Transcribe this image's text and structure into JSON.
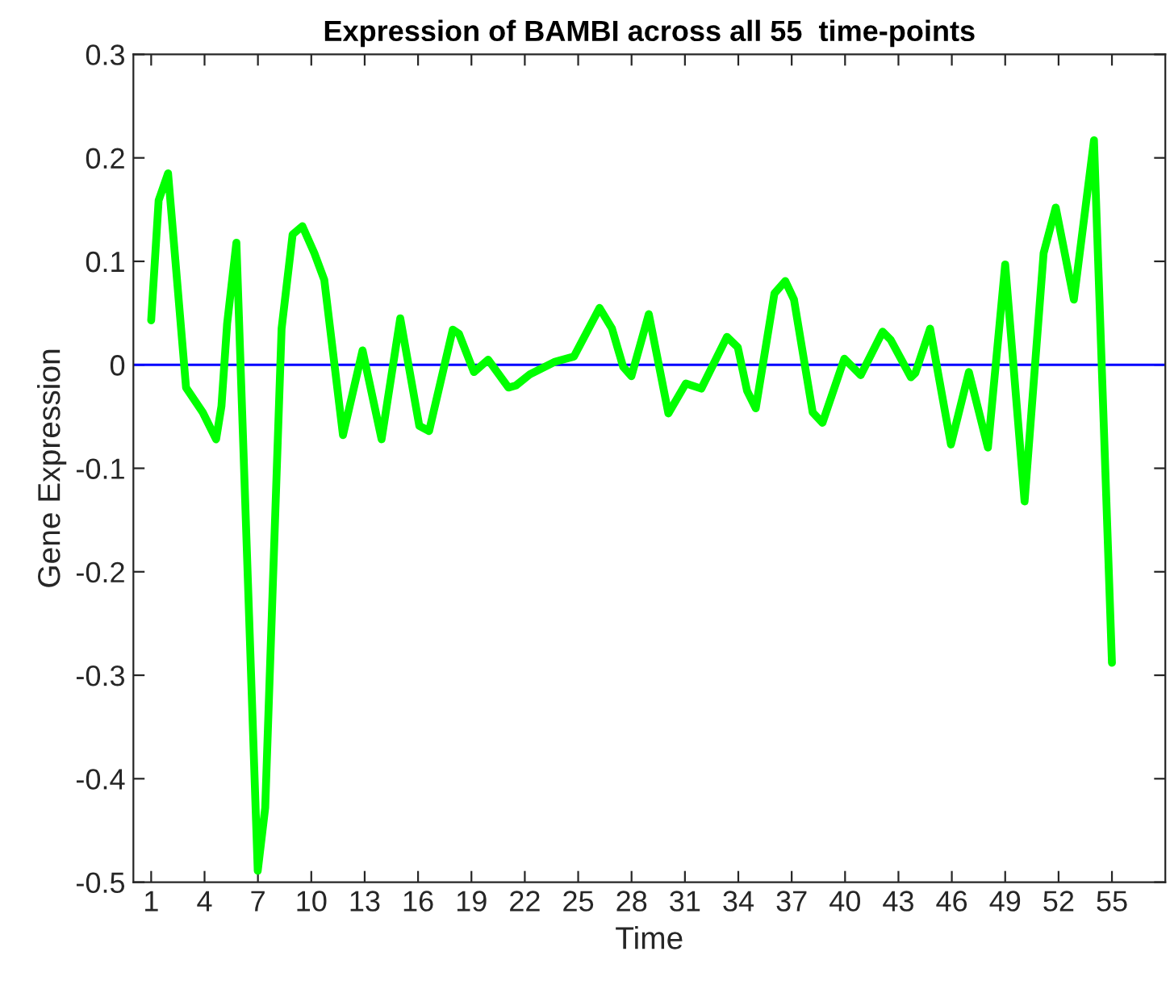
{
  "chart_data": {
    "type": "line",
    "title": "Expression of BAMBI across all 55  time-points",
    "xlabel": "Time",
    "ylabel": "Gene Expression",
    "xlim": [
      0,
      58
    ],
    "xticks": [
      1,
      4,
      7,
      10,
      13,
      16,
      19,
      22,
      25,
      28,
      31,
      34,
      37,
      40,
      43,
      46,
      49,
      52,
      55
    ],
    "ylim": [
      -0.5,
      0.3
    ],
    "yticks": [
      -0.5,
      -0.4,
      -0.3,
      -0.2,
      -0.1,
      0,
      0.1,
      0.2,
      0.3
    ],
    "grid": false,
    "legend": false,
    "marker": "none",
    "line_style": "solid",
    "ref_lines": [
      {
        "axis": "y",
        "value": 0,
        "color": "#0000ff",
        "line_style": "solid"
      }
    ],
    "series": [
      {
        "color": "#00ff00",
        "x": [
          1,
          1.42,
          1.95,
          2.96,
          3.9,
          4.65,
          4.95,
          5.27,
          5.79,
          6.99,
          7.41,
          8.33,
          8.95,
          9.5,
          10.17,
          10.73,
          11.78,
          12.88,
          13.95,
          15.0,
          16.07,
          16.62,
          17.95,
          18.3,
          19.14,
          19.94,
          21.08,
          21.5,
          22.3,
          23.7,
          24.76,
          26.2,
          26.9,
          27.53,
          27.99,
          28.97,
          30.07,
          31.05,
          31.92,
          33.36,
          33.97,
          34.49,
          34.98,
          36.03,
          36.64,
          37.13,
          38.18,
          38.73,
          39.96,
          40.88,
          42.11,
          42.57,
          43.7,
          43.95,
          44.78,
          45.95,
          46.96,
          48.03,
          49.0,
          50.09,
          51.16,
          51.84,
          52.86,
          53.99,
          55.0
        ],
        "values": [
          0.043,
          0.159,
          0.185,
          -0.022,
          -0.046,
          -0.072,
          -0.04,
          0.04,
          0.118,
          -0.489,
          -0.428,
          0.035,
          0.126,
          0.134,
          0.108,
          0.082,
          -0.068,
          0.014,
          -0.072,
          0.045,
          -0.059,
          -0.064,
          0.034,
          0.03,
          -0.007,
          0.005,
          -0.022,
          -0.02,
          -0.009,
          0.003,
          0.008,
          0.055,
          0.035,
          -0.002,
          -0.011,
          0.049,
          -0.047,
          -0.018,
          -0.023,
          0.027,
          0.017,
          -0.025,
          -0.042,
          0.069,
          0.081,
          0.063,
          -0.046,
          -0.056,
          0.006,
          -0.01,
          0.032,
          0.024,
          -0.012,
          -0.008,
          0.035,
          -0.077,
          -0.007,
          -0.08,
          0.097,
          -0.132,
          0.108,
          0.152,
          0.063,
          0.217,
          -0.288
        ]
      }
    ]
  }
}
